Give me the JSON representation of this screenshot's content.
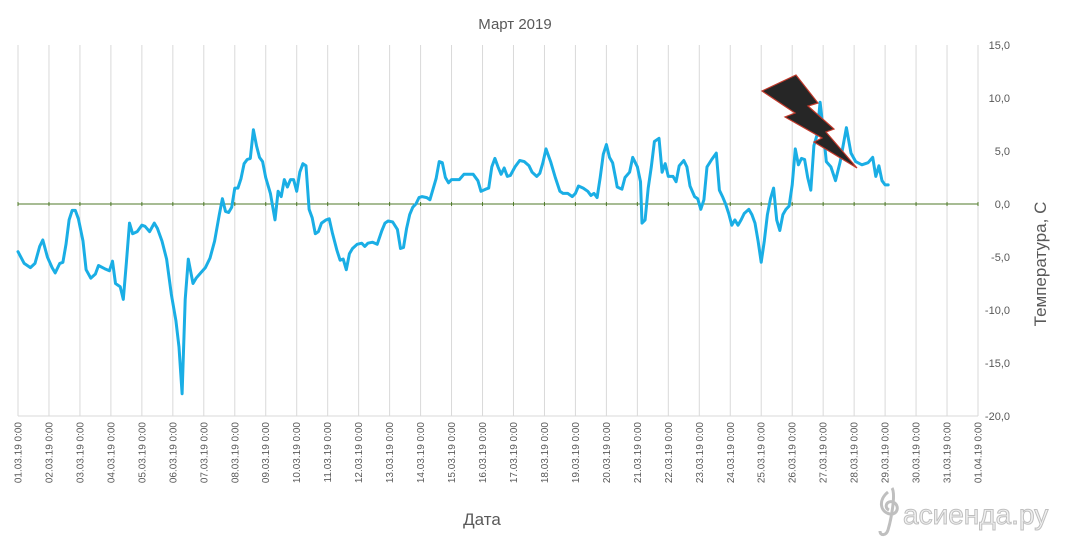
{
  "chart_data": {
    "type": "line",
    "title": "Март 2019",
    "xlabel": "Дата",
    "ylabel": "Температура, С",
    "ylim": [
      -20,
      15
    ],
    "ytick_step": 5,
    "ytick_labels": [
      "-20,0",
      "-15,0",
      "-10,0",
      "-5,0",
      "0,0",
      "5,0",
      "10,0",
      "15,0"
    ],
    "y_axis_position": "right",
    "grid": "vertical",
    "legend": "none",
    "x_tick_labels": [
      "01.03.19 0:00",
      "02.03.19 0:00",
      "03.03.19 0:00",
      "04.03.19 0:00",
      "05.03.19 0:00",
      "06.03.19 0:00",
      "07.03.19 0:00",
      "08.03.19 0:00",
      "09.03.19 0:00",
      "10.03.19 0:00",
      "11.03.19 0:00",
      "12.03.19 0:00",
      "13.03.19 0:00",
      "14.03.19 0:00",
      "15.03.19 0:00",
      "16.03.19 0:00",
      "17.03.19 0:00",
      "18.03.19 0:00",
      "19.03.19 0:00",
      "20.03.19 0:00",
      "21.03.19 0:00",
      "22.03.19 0:00",
      "23.03.19 0:00",
      "24.03.19 0:00",
      "25.03.19 0:00",
      "26.03.19 0:00",
      "27.03.19 0:00",
      "28.03.19 0:00",
      "29.03.19 0:00",
      "30.03.19 0:00",
      "31.03.19 0:00",
      "01.04.19 0:00"
    ],
    "x_range_days": [
      0,
      31
    ],
    "series": [
      {
        "color": "#1aaee5",
        "points": [
          [
            0.0,
            -4.5
          ],
          [
            0.2,
            -5.6
          ],
          [
            0.4,
            -6.0
          ],
          [
            0.55,
            -5.6
          ],
          [
            0.7,
            -4.0
          ],
          [
            0.8,
            -3.4
          ],
          [
            0.95,
            -5.0
          ],
          [
            1.1,
            -6.0
          ],
          [
            1.2,
            -6.5
          ],
          [
            1.35,
            -5.6
          ],
          [
            1.45,
            -5.5
          ],
          [
            1.55,
            -3.8
          ],
          [
            1.65,
            -1.5
          ],
          [
            1.75,
            -0.6
          ],
          [
            1.85,
            -0.6
          ],
          [
            1.95,
            -1.4
          ],
          [
            2.1,
            -3.5
          ],
          [
            2.2,
            -6.2
          ],
          [
            2.35,
            -7.0
          ],
          [
            2.5,
            -6.6
          ],
          [
            2.6,
            -5.8
          ],
          [
            2.8,
            -6.1
          ],
          [
            2.95,
            -6.3
          ],
          [
            3.05,
            -5.4
          ],
          [
            3.15,
            -7.5
          ],
          [
            3.3,
            -7.8
          ],
          [
            3.4,
            -9.0
          ],
          [
            3.5,
            -5.5
          ],
          [
            3.6,
            -1.8
          ],
          [
            3.7,
            -2.8
          ],
          [
            3.85,
            -2.6
          ],
          [
            4.0,
            -2.0
          ],
          [
            4.1,
            -2.1
          ],
          [
            4.25,
            -2.6
          ],
          [
            4.4,
            -1.8
          ],
          [
            4.5,
            -2.3
          ],
          [
            4.65,
            -3.5
          ],
          [
            4.8,
            -5.2
          ],
          [
            4.95,
            -8.5
          ],
          [
            5.1,
            -11.0
          ],
          [
            5.2,
            -13.5
          ],
          [
            5.3,
            -17.9
          ],
          [
            5.4,
            -9.0
          ],
          [
            5.5,
            -5.2
          ],
          [
            5.65,
            -7.5
          ],
          [
            5.75,
            -7.0
          ],
          [
            5.9,
            -6.5
          ],
          [
            6.05,
            -6.0
          ],
          [
            6.2,
            -5.1
          ],
          [
            6.35,
            -3.5
          ],
          [
            6.5,
            -1.0
          ],
          [
            6.6,
            0.5
          ],
          [
            6.7,
            -0.7
          ],
          [
            6.8,
            -0.8
          ],
          [
            6.9,
            -0.3
          ],
          [
            7.0,
            1.5
          ],
          [
            7.1,
            1.5
          ],
          [
            7.2,
            2.4
          ],
          [
            7.3,
            3.8
          ],
          [
            7.4,
            4.2
          ],
          [
            7.5,
            4.3
          ],
          [
            7.6,
            7.0
          ],
          [
            7.7,
            5.5
          ],
          [
            7.8,
            4.4
          ],
          [
            7.9,
            4.0
          ],
          [
            8.0,
            2.5
          ],
          [
            8.15,
            1.0
          ],
          [
            8.3,
            -1.5
          ],
          [
            8.4,
            1.2
          ],
          [
            8.5,
            0.7
          ],
          [
            8.6,
            2.3
          ],
          [
            8.7,
            1.6
          ],
          [
            8.8,
            2.3
          ],
          [
            8.9,
            2.3
          ],
          [
            9.0,
            1.2
          ],
          [
            9.1,
            3.0
          ],
          [
            9.2,
            3.8
          ],
          [
            9.3,
            3.6
          ],
          [
            9.4,
            -0.5
          ],
          [
            9.5,
            -1.3
          ],
          [
            9.6,
            -2.8
          ],
          [
            9.7,
            -2.6
          ],
          [
            9.8,
            -1.8
          ],
          [
            9.95,
            -1.5
          ],
          [
            10.05,
            -1.4
          ],
          [
            10.15,
            -2.7
          ],
          [
            10.3,
            -4.4
          ],
          [
            10.4,
            -5.3
          ],
          [
            10.5,
            -5.2
          ],
          [
            10.6,
            -6.2
          ],
          [
            10.7,
            -4.7
          ],
          [
            10.8,
            -4.2
          ],
          [
            10.95,
            -3.8
          ],
          [
            11.1,
            -3.7
          ],
          [
            11.2,
            -4.0
          ],
          [
            11.3,
            -3.7
          ],
          [
            11.45,
            -3.6
          ],
          [
            11.6,
            -3.8
          ],
          [
            11.75,
            -2.5
          ],
          [
            11.85,
            -1.8
          ],
          [
            11.95,
            -1.6
          ],
          [
            12.1,
            -1.7
          ],
          [
            12.25,
            -2.4
          ],
          [
            12.35,
            -4.2
          ],
          [
            12.45,
            -4.1
          ],
          [
            12.55,
            -2.3
          ],
          [
            12.65,
            -1.0
          ],
          [
            12.75,
            -0.3
          ],
          [
            12.85,
            0.0
          ],
          [
            12.95,
            0.6
          ],
          [
            13.05,
            0.7
          ],
          [
            13.2,
            0.6
          ],
          [
            13.3,
            0.4
          ],
          [
            13.4,
            1.4
          ],
          [
            13.5,
            2.4
          ],
          [
            13.6,
            4.0
          ],
          [
            13.7,
            3.9
          ],
          [
            13.8,
            2.5
          ],
          [
            13.9,
            2.0
          ],
          [
            14.0,
            2.3
          ],
          [
            14.15,
            2.3
          ],
          [
            14.25,
            2.3
          ],
          [
            14.4,
            2.8
          ],
          [
            14.55,
            2.8
          ],
          [
            14.7,
            2.8
          ],
          [
            14.85,
            2.2
          ],
          [
            14.95,
            1.2
          ],
          [
            15.1,
            1.4
          ],
          [
            15.2,
            1.5
          ],
          [
            15.3,
            3.5
          ],
          [
            15.4,
            4.3
          ],
          [
            15.5,
            3.5
          ],
          [
            15.6,
            2.8
          ],
          [
            15.7,
            3.4
          ],
          [
            15.8,
            2.6
          ],
          [
            15.9,
            2.7
          ],
          [
            16.05,
            3.5
          ],
          [
            16.2,
            4.1
          ],
          [
            16.35,
            4.0
          ],
          [
            16.5,
            3.6
          ],
          [
            16.6,
            3.0
          ],
          [
            16.75,
            2.6
          ],
          [
            16.85,
            2.9
          ],
          [
            16.95,
            3.9
          ],
          [
            17.05,
            5.2
          ],
          [
            17.2,
            4.0
          ],
          [
            17.35,
            2.5
          ],
          [
            17.5,
            1.2
          ],
          [
            17.6,
            1.0
          ],
          [
            17.75,
            1.0
          ],
          [
            17.9,
            0.7
          ],
          [
            18.0,
            1.0
          ],
          [
            18.1,
            1.7
          ],
          [
            18.25,
            1.5
          ],
          [
            18.4,
            1.2
          ],
          [
            18.5,
            0.8
          ],
          [
            18.6,
            1.0
          ],
          [
            18.7,
            0.6
          ],
          [
            18.8,
            2.5
          ],
          [
            18.9,
            4.7
          ],
          [
            19.0,
            5.6
          ],
          [
            19.1,
            4.4
          ],
          [
            19.2,
            3.9
          ],
          [
            19.3,
            2.4
          ],
          [
            19.35,
            1.6
          ],
          [
            19.5,
            1.4
          ],
          [
            19.6,
            2.5
          ],
          [
            19.75,
            3.0
          ],
          [
            19.85,
            4.4
          ],
          [
            20.0,
            3.5
          ],
          [
            20.1,
            2.1
          ],
          [
            20.15,
            -1.8
          ],
          [
            20.25,
            -1.5
          ],
          [
            20.35,
            1.5
          ],
          [
            20.45,
            3.5
          ],
          [
            20.55,
            5.9
          ],
          [
            20.7,
            6.2
          ],
          [
            20.8,
            3.0
          ],
          [
            20.9,
            3.8
          ],
          [
            21.0,
            2.6
          ],
          [
            21.15,
            2.6
          ],
          [
            21.25,
            2.1
          ],
          [
            21.35,
            3.6
          ],
          [
            21.5,
            4.1
          ],
          [
            21.6,
            3.5
          ],
          [
            21.7,
            1.7
          ],
          [
            21.85,
            0.7
          ],
          [
            21.95,
            0.5
          ],
          [
            22.05,
            -0.5
          ],
          [
            22.15,
            0.4
          ],
          [
            22.25,
            3.5
          ],
          [
            22.4,
            4.2
          ],
          [
            22.55,
            4.8
          ],
          [
            22.65,
            1.3
          ],
          [
            22.75,
            0.7
          ],
          [
            22.85,
            0.0
          ],
          [
            22.95,
            -0.9
          ],
          [
            23.05,
            -2.0
          ],
          [
            23.15,
            -1.5
          ],
          [
            23.25,
            -2.0
          ],
          [
            23.35,
            -1.5
          ],
          [
            23.45,
            -0.9
          ],
          [
            23.6,
            -0.5
          ],
          [
            23.7,
            -1.0
          ],
          [
            23.8,
            -1.8
          ],
          [
            23.9,
            -3.5
          ],
          [
            24.0,
            -5.5
          ],
          [
            24.1,
            -3.5
          ],
          [
            24.2,
            -1.0
          ],
          [
            24.3,
            0.5
          ],
          [
            24.4,
            1.5
          ],
          [
            24.5,
            -1.5
          ],
          [
            24.6,
            -2.5
          ],
          [
            24.7,
            -1.0
          ],
          [
            24.8,
            -0.5
          ],
          [
            24.9,
            -0.2
          ],
          [
            25.0,
            1.8
          ],
          [
            25.1,
            5.2
          ],
          [
            25.2,
            3.7
          ],
          [
            25.3,
            4.3
          ],
          [
            25.4,
            4.2
          ],
          [
            25.5,
            2.5
          ],
          [
            25.6,
            1.3
          ],
          [
            25.7,
            5.5
          ],
          [
            25.8,
            6.5
          ],
          [
            25.9,
            9.6
          ],
          [
            26.0,
            7.0
          ],
          [
            26.1,
            4.0
          ],
          [
            26.25,
            3.5
          ],
          [
            26.4,
            2.2
          ],
          [
            26.55,
            4.0
          ],
          [
            26.75,
            7.2
          ],
          [
            26.9,
            4.8
          ],
          [
            27.05,
            4.0
          ],
          [
            27.25,
            3.7
          ],
          [
            27.45,
            3.9
          ],
          [
            27.6,
            4.4
          ],
          [
            27.7,
            2.6
          ],
          [
            27.8,
            3.6
          ],
          [
            27.9,
            2.2
          ],
          [
            28.0,
            1.8
          ],
          [
            28.1,
            1.8
          ]
        ]
      }
    ],
    "annotation": "lightning-bolt"
  },
  "watermark": "асиенда.ру",
  "colors": {
    "line": "#1aaee5",
    "zero_line": "#4f7a2a",
    "grid": "#d9d9d9",
    "text": "#595959",
    "bolt_fill": "#262626",
    "bolt_stroke": "#c0392b"
  }
}
